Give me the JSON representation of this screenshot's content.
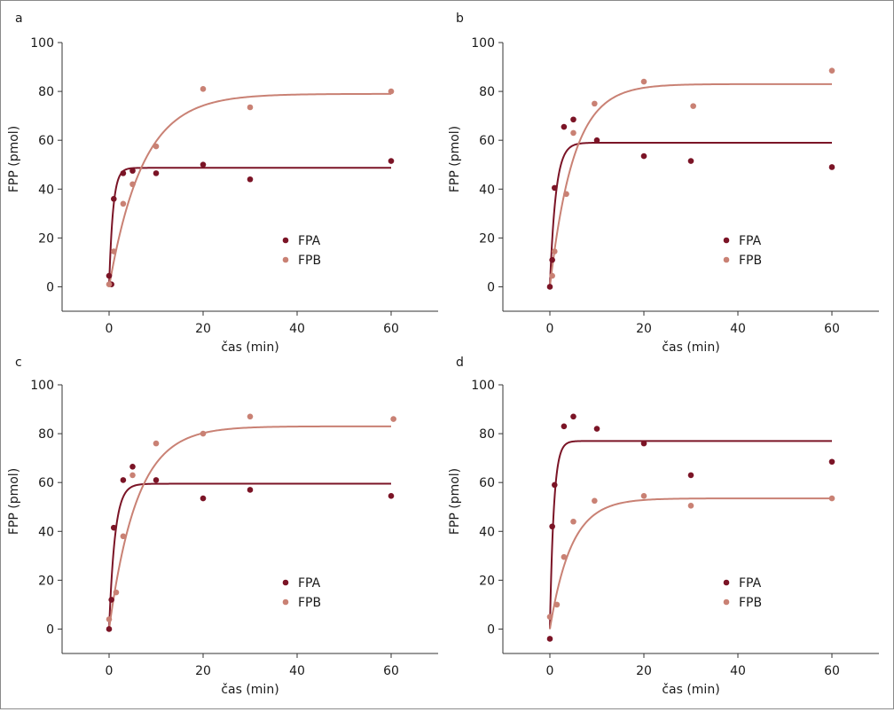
{
  "colors": {
    "fpa": "#7b1426",
    "fpb": "#c98174",
    "axis": "#333333"
  },
  "chart_data": [
    {
      "panel": "a",
      "type": "scatter",
      "xlabel": "čas (min)",
      "ylabel": "FPP (pmol)",
      "xlim": [
        -10,
        70
      ],
      "ylim": [
        -10,
        100
      ],
      "xticks": [
        0,
        20,
        40,
        60
      ],
      "yticks": [
        0,
        20,
        40,
        60,
        80,
        100
      ],
      "legend_position": "bottom-right",
      "series": [
        {
          "name": "FPA",
          "color": "#7b1426",
          "points": [
            [
              0,
              4.5
            ],
            [
              0.5,
              1
            ],
            [
              1,
              36
            ],
            [
              3,
              46.5
            ],
            [
              5,
              47.5
            ],
            [
              10,
              46.5
            ],
            [
              20,
              50
            ],
            [
              30,
              44
            ],
            [
              60,
              51.5
            ]
          ],
          "fit": {
            "plateau": 48.7,
            "k": 1.2
          }
        },
        {
          "name": "FPB",
          "color": "#c98174",
          "points": [
            [
              0,
              1
            ],
            [
              1,
              14.5
            ],
            [
              3,
              34
            ],
            [
              5,
              42
            ],
            [
              10,
              57.5
            ],
            [
              20,
              81
            ],
            [
              30,
              73.5
            ],
            [
              60,
              80
            ]
          ],
          "fit": {
            "plateau": 79,
            "k": 0.14
          }
        }
      ]
    },
    {
      "panel": "b",
      "type": "scatter",
      "xlabel": "čas (min)",
      "ylabel": "FPP (pmol)",
      "xlim": [
        -10,
        70
      ],
      "ylim": [
        -10,
        100
      ],
      "xticks": [
        0,
        20,
        40,
        60
      ],
      "yticks": [
        0,
        20,
        40,
        60,
        80,
        100
      ],
      "legend_position": "bottom-right",
      "series": [
        {
          "name": "FPA",
          "color": "#7b1426",
          "points": [
            [
              0,
              0
            ],
            [
              0.5,
              11
            ],
            [
              1,
              40.5
            ],
            [
              3,
              65.5
            ],
            [
              5,
              68.5
            ],
            [
              10,
              60
            ],
            [
              20,
              53.5
            ],
            [
              30,
              51.5
            ],
            [
              60,
              49
            ]
          ],
          "fit": {
            "plateau": 59,
            "k": 0.8
          }
        },
        {
          "name": "FPB",
          "color": "#c98174",
          "points": [
            [
              0.5,
              4.5
            ],
            [
              1,
              14.5
            ],
            [
              3.5,
              38
            ],
            [
              5,
              63
            ],
            [
              9.5,
              75
            ],
            [
              20,
              84
            ],
            [
              30.5,
              74
            ],
            [
              60,
              88.5
            ]
          ],
          "fit": {
            "plateau": 83,
            "k": 0.2
          }
        }
      ]
    },
    {
      "panel": "c",
      "type": "scatter",
      "xlabel": "čas (min)",
      "ylabel": "FPP (pmol)",
      "xlim": [
        -10,
        70
      ],
      "ylim": [
        -10,
        100
      ],
      "xticks": [
        0,
        20,
        40,
        60
      ],
      "yticks": [
        0,
        20,
        40,
        60,
        80,
        100
      ],
      "legend_position": "bottom-right",
      "series": [
        {
          "name": "FPA",
          "color": "#7b1426",
          "points": [
            [
              0,
              0
            ],
            [
              0.5,
              12
            ],
            [
              1,
              41.5
            ],
            [
              3,
              61
            ],
            [
              5,
              66.5
            ],
            [
              10,
              61
            ],
            [
              20,
              53.5
            ],
            [
              30,
              57
            ],
            [
              60,
              54.5
            ]
          ],
          "fit": {
            "plateau": 59.5,
            "k": 0.8
          }
        },
        {
          "name": "FPB",
          "color": "#c98174",
          "points": [
            [
              0,
              4
            ],
            [
              1.5,
              15
            ],
            [
              3,
              38
            ],
            [
              5,
              63
            ],
            [
              10,
              76
            ],
            [
              20,
              80
            ],
            [
              30,
              87
            ],
            [
              60.5,
              86
            ]
          ],
          "fit": {
            "plateau": 83,
            "k": 0.17
          }
        }
      ]
    },
    {
      "panel": "d",
      "type": "scatter",
      "xlabel": "čas (min)",
      "ylabel": "FPP (pmol)",
      "xlim": [
        -10,
        70
      ],
      "ylim": [
        -10,
        100
      ],
      "xticks": [
        0,
        20,
        40,
        60
      ],
      "yticks": [
        0,
        20,
        40,
        60,
        80,
        100
      ],
      "legend_position": "bottom-right",
      "series": [
        {
          "name": "FPA",
          "color": "#7b1426",
          "points": [
            [
              0,
              -4
            ],
            [
              0.5,
              42
            ],
            [
              1,
              59
            ],
            [
              3,
              83
            ],
            [
              5,
              87
            ],
            [
              10,
              82
            ],
            [
              20,
              76
            ],
            [
              30,
              63
            ],
            [
              60,
              68.5
            ]
          ],
          "fit": {
            "plateau": 77,
            "k": 1.2
          }
        },
        {
          "name": "FPB",
          "color": "#c98174",
          "points": [
            [
              0,
              5
            ],
            [
              1.5,
              10
            ],
            [
              3,
              29.5
            ],
            [
              5,
              44
            ],
            [
              9.5,
              52.5
            ],
            [
              20,
              54.5
            ],
            [
              30,
              50.5
            ],
            [
              60,
              53.5
            ]
          ],
          "fit": {
            "plateau": 53.5,
            "k": 0.22
          }
        }
      ]
    }
  ]
}
